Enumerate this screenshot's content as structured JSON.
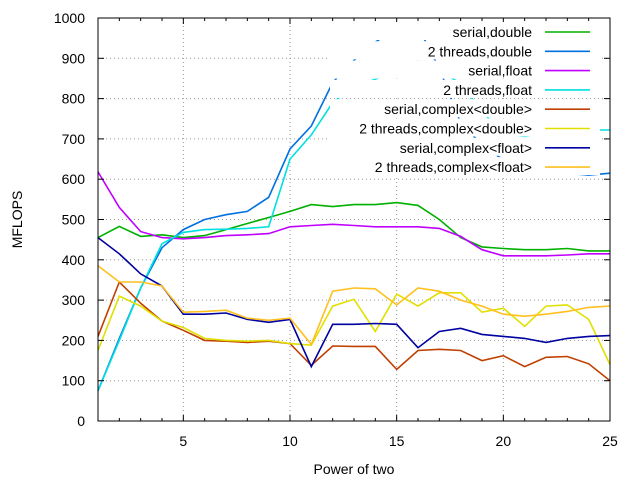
{
  "chart_data": {
    "type": "line",
    "xlabel": "Power of two",
    "ylabel": "MFLOPS",
    "xlim": [
      1,
      25
    ],
    "ylim": [
      0,
      1000
    ],
    "xticks": [
      5,
      10,
      15,
      20,
      25
    ],
    "yticks": [
      0,
      100,
      200,
      300,
      400,
      500,
      600,
      700,
      800,
      900,
      1000
    ],
    "grid": true,
    "legend_position": "top-right",
    "x": [
      1,
      2,
      3,
      4,
      5,
      6,
      7,
      8,
      9,
      10,
      11,
      12,
      13,
      14,
      15,
      16,
      17,
      18,
      19,
      20,
      21,
      22,
      23,
      24,
      25
    ],
    "series": [
      {
        "name": "serial,double",
        "color": "#00b000",
        "values": [
          455,
          483,
          458,
          462,
          455,
          460,
          475,
          490,
          505,
          520,
          537,
          532,
          537,
          537,
          542,
          535,
          500,
          455,
          432,
          428,
          425,
          425,
          428,
          422,
          422
        ]
      },
      {
        "name": "2 threads,double",
        "color": "#0070e0",
        "values": [
          75,
          205,
          330,
          430,
          475,
          500,
          512,
          520,
          555,
          675,
          732,
          840,
          895,
          940,
          975,
          978,
          875,
          740,
          685,
          648,
          635,
          625,
          615,
          610,
          615
        ]
      },
      {
        "name": "serial,float",
        "color": "#c000ff",
        "values": [
          618,
          530,
          470,
          455,
          452,
          455,
          460,
          462,
          465,
          482,
          485,
          488,
          485,
          482,
          482,
          482,
          478,
          458,
          425,
          410,
          410,
          410,
          412,
          415,
          415
        ]
      },
      {
        "name": "2 threads,float",
        "color": "#00e0e0",
        "values": [
          75,
          200,
          330,
          440,
          468,
          475,
          476,
          478,
          482,
          650,
          710,
          790,
          830,
          848,
          870,
          893,
          868,
          838,
          768,
          712,
          706,
          713,
          718,
          722,
          722
        ]
      },
      {
        "name": "serial,complex<double>",
        "color": "#c04000",
        "values": [
          210,
          345,
          292,
          248,
          225,
          200,
          198,
          195,
          198,
          192,
          138,
          186,
          185,
          185,
          128,
          175,
          178,
          175,
          150,
          162,
          135,
          158,
          160,
          142,
          100
        ]
      },
      {
        "name": "2 threads,complex<double>",
        "color": "#e0e000",
        "values": [
          175,
          310,
          285,
          248,
          232,
          205,
          200,
          198,
          200,
          192,
          188,
          285,
          302,
          222,
          315,
          285,
          318,
          318,
          270,
          280,
          235,
          285,
          288,
          252,
          140
        ]
      },
      {
        "name": "serial,complex<float>",
        "color": "#0000a0",
        "values": [
          455,
          415,
          365,
          335,
          265,
          265,
          268,
          252,
          245,
          252,
          135,
          240,
          240,
          242,
          240,
          182,
          222,
          230,
          215,
          210,
          205,
          195,
          205,
          210,
          212
        ]
      },
      {
        "name": "2 threads,complex<float>",
        "color": "#ffc020",
        "values": [
          385,
          345,
          345,
          335,
          270,
          272,
          275,
          255,
          250,
          255,
          190,
          322,
          330,
          328,
          288,
          330,
          322,
          300,
          285,
          265,
          260,
          265,
          272,
          282,
          285
        ]
      }
    ]
  }
}
